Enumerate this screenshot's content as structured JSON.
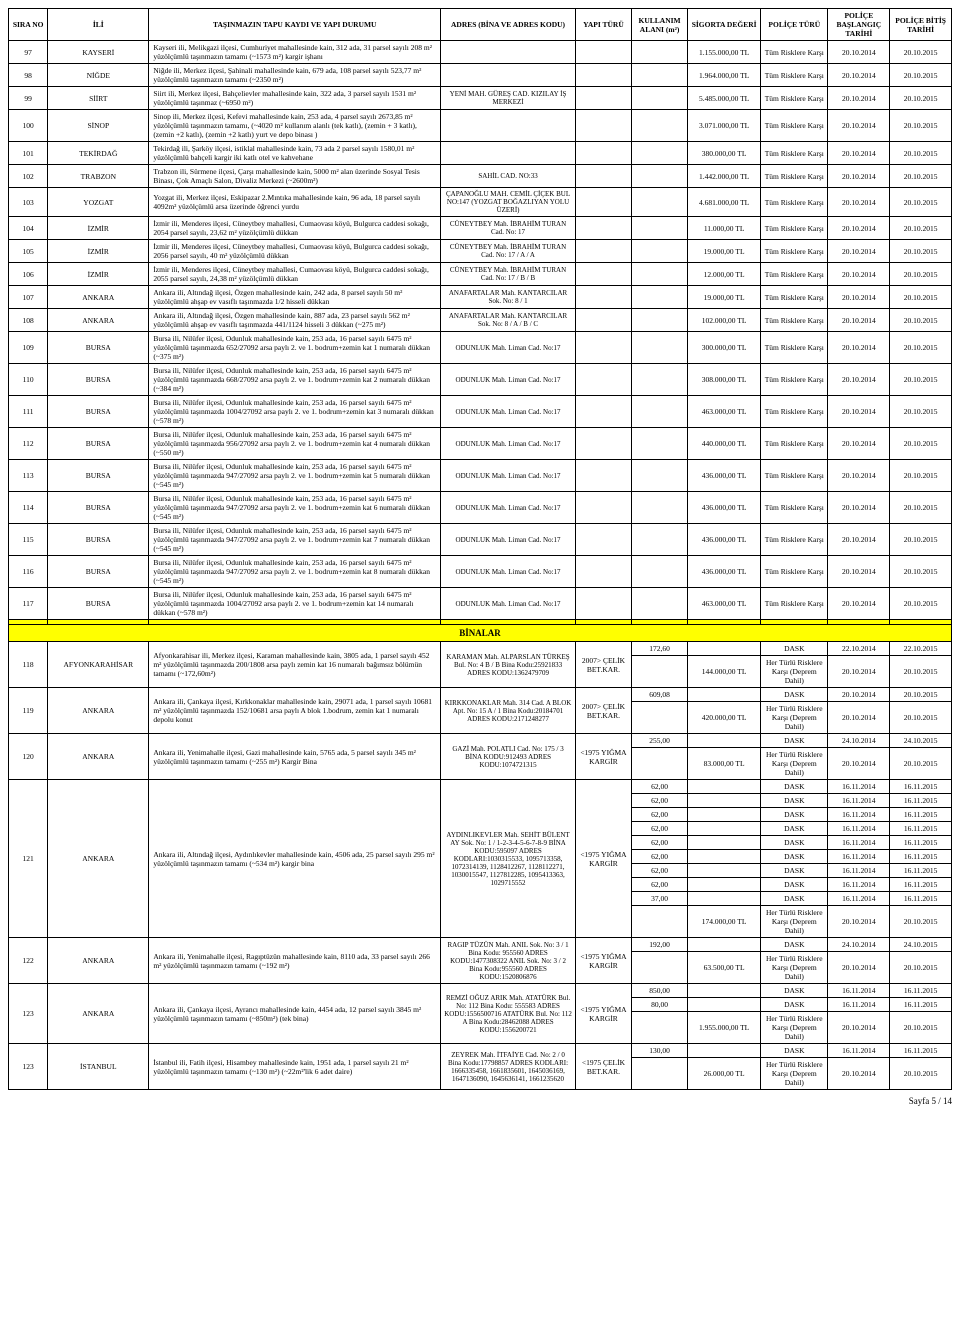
{
  "headers": {
    "sira": "SIRA NO",
    "il": "İLİ",
    "tapu": "TAŞINMAZIN TAPU KAYDI VE YAPI DURUMU",
    "adres": "ADRES\n(BİNA VE ADRES KODU)",
    "yapi": "YAPI TÜRÜ",
    "alan": "KULLANIM ALANI (m²)",
    "sigorta": "SİGORTA DEĞERİ",
    "police": "POLİÇE TÜRÜ",
    "baslangic": "POLİÇE BAŞLANGIÇ TARİHİ",
    "bitis": "POLİÇE BİTİŞ TARİHİ"
  },
  "police_types": {
    "tum": "Tüm Risklere Karşı",
    "dask": "DASK",
    "her": "Her Türlü Risklere Karşı (Deprem Dahil)"
  },
  "section_title": "BİNALAR",
  "footer": "Sayfa 5 / 14",
  "rows_top": [
    {
      "sira": "97",
      "il": "KAYSERİ",
      "tapu": "Kayseri ili, Melikgazi ilçesi, Cumhuriyet mahallesinde kain, 312 ada, 31 parsel sayılı 208 m² yüzölçümlü taşınmazın tamamı (~1573 m²) kargir işhanı",
      "adres": "",
      "sigorta": "1.155.000,00 TL",
      "baslangic": "20.10.2014",
      "bitis": "20.10.2015"
    },
    {
      "sira": "98",
      "il": "NİĞDE",
      "tapu": "Niğde ili, Merkez ilçesi, Şahinali mahallesinde kain, 679 ada, 108 parsel sayılı 523,77 m² yüzölçümlü taşınmazın tamamı (~2350 m²)",
      "adres": "",
      "sigorta": "1.964.000,00 TL",
      "baslangic": "20.10.2014",
      "bitis": "20.10.2015"
    },
    {
      "sira": "99",
      "il": "SİİRT",
      "tapu": "Siirt ili, Merkez ilçesi, Bahçelievler mahallesinde kain, 322 ada, 3 parsel sayılı 1531 m² yüzölçümlü taşınmaz (~6950 m²)",
      "adres": "YENİ MAH. GÜREŞ CAD. KIZILAY İŞ MERKEZİ",
      "sigorta": "5.485.000,00 TL",
      "baslangic": "20.10.2014",
      "bitis": "20.10.2015"
    },
    {
      "sira": "100",
      "il": "SİNOP",
      "tapu": "Sinop ili, Merkez ilçesi, Kefevi mahallesinde kain, 253 ada, 4 parsel sayılı 2673,85 m² yüzölçümlü taşınmazın tamamı, (~4020 m² kullanım alanlı (tek katlı), (zemin + 3 katlı), (zemin +2 katlı), (zemin +2 katlı) yurt ve depo binası )",
      "adres": "",
      "sigorta": "3.071.000,00 TL",
      "baslangic": "20.10.2014",
      "bitis": "20.10.2015"
    },
    {
      "sira": "101",
      "il": "TEKİRDAĞ",
      "tapu": "Tekirdağ ili, Şarköy ilçesi, istiklal mahallesinde kain, 73 ada 2 parsel sayılı 1580,01 m² yüzölçümlü bahçeli kargir iki katlı otel ve kahvehane",
      "adres": "",
      "sigorta": "380.000,00 TL",
      "baslangic": "20.10.2014",
      "bitis": "20.10.2015"
    },
    {
      "sira": "102",
      "il": "TRABZON",
      "tapu": "Trabzon ili, Sürmene ilçesi, Çarşı mahallesinde kain, 5000 m² alan üzerinde Sosyal Tesis Binası, Çok Amaçlı Salon, Divaliz Merkezi (~2600m²)",
      "adres": "SAHİL CAD. NO:33",
      "sigorta": "1.442.000,00 TL",
      "baslangic": "20.10.2014",
      "bitis": "20.10.2015"
    },
    {
      "sira": "103",
      "il": "YOZGAT",
      "tapu": "Yozgat ili, Merkez ilçesi, Eskipazar 2.Mıntıka mahallesinde kain, 96 ada, 18 parsel sayılı 4092m² yüzölçümlü arsa üzerinde öğrenci yurdu",
      "adres": "ÇAPANOĞLU MAH. CEMİL ÇİÇEK BUL NO:147 (YOZGAT BOĞAZLIYAN YOLU ÜZERİ)",
      "sigorta": "4.681.000,00 TL",
      "baslangic": "20.10.2014",
      "bitis": "20.10.2015"
    },
    {
      "sira": "104",
      "il": "İZMİR",
      "tapu": "İzmir ili, Menderes ilçesi, Cüneytbey mahallesi, Cumaovası köyü, Bulgurca caddesi sokağı, 2054 parsel sayılı, 23,62 m² yüzölçümlü dükkan",
      "adres": "CÜNEYTBEY Mah. İBRAHİM TURAN Cad. No: 17",
      "sigorta": "11.000,00 TL",
      "baslangic": "20.10.2014",
      "bitis": "20.10.2015"
    },
    {
      "sira": "105",
      "il": "İZMİR",
      "tapu": "İzmir ili, Menderes ilçesi, Cüneytbey mahallesi, Cumaovası köyü, Bulgurca caddesi sokağı, 2056 parsel sayılı, 40 m² yüzölçümlü dükkan",
      "adres": "CÜNEYTBEY Mah. İBRAHİM TURAN Cad. No: 17 / A / A",
      "sigorta": "19.000,00 TL",
      "baslangic": "20.10.2014",
      "bitis": "20.10.2015"
    },
    {
      "sira": "106",
      "il": "İZMİR",
      "tapu": "İzmir ili, Menderes ilçesi, Cüneytbey mahallesi, Cumaovası köyü, Bulgurca caddesi sokağı, 2055 parsel sayılı, 24,38 m² yüzölçümlü dükkan",
      "adres": "CÜNEYTBEY Mah. İBRAHİM TURAN Cad. No: 17 / B / B",
      "sigorta": "12.000,00 TL",
      "baslangic": "20.10.2014",
      "bitis": "20.10.2015"
    },
    {
      "sira": "107",
      "il": "ANKARA",
      "tapu": "Ankara ili, Altındağ ilçesi, Özgen mahallesinde kain, 242 ada, 8 parsel sayılı 50 m² yüzölçümlü ahşap ev vasıflı taşınmazda 1/2 hisseli dükkan",
      "adres": "ANAFARTALAR Mah. KANTARCILAR Sok. No: 8 / 1",
      "sigorta": "19.000,00 TL",
      "baslangic": "20.10.2014",
      "bitis": "20.10.2015"
    },
    {
      "sira": "108",
      "il": "ANKARA",
      "tapu": "Ankara ili, Altındağ ilçesi, Özgen mahallesinde kain, 887 ada, 23 parsel sayılı 562 m² yüzölçümlü ahşap ev vasıflı taşınmazda 441/1124 hisseli 3 dükkan (~275 m²)",
      "adres": "ANAFARTALAR Mah. KANTARCILAR Sok. No: 8 / A / B / C",
      "sigorta": "102.000,00 TL",
      "baslangic": "20.10.2014",
      "bitis": "20.10.2015"
    },
    {
      "sira": "109",
      "il": "BURSA",
      "tapu": "Bursa ili, Nilüfer ilçesi, Odunluk mahallesinde kain, 253 ada, 16 parsel sayılı 6475 m² yüzölçümlü taşınmazda 652/27092 arsa paylı 2. ve 1. bodrum+zemin kat 1 numaralı dükkan (~375 m²)",
      "adres": "ODUNLUK Mah. Liman Cad. No:17",
      "sigorta": "300.000,00 TL",
      "baslangic": "20.10.2014",
      "bitis": "20.10.2015"
    },
    {
      "sira": "110",
      "il": "BURSA",
      "tapu": "Bursa ili, Nilüfer ilçesi, Odunluk mahallesinde kain, 253 ada, 16 parsel sayılı 6475 m² yüzölçümlü taşınmazda 668/27092 arsa paylı 2. ve 1. bodrum+zemin kat 2 numaralı dükkan (~384 m²)",
      "adres": "ODUNLUK Mah. Liman Cad. No:17",
      "sigorta": "308.000,00 TL",
      "baslangic": "20.10.2014",
      "bitis": "20.10.2015"
    },
    {
      "sira": "111",
      "il": "BURSA",
      "tapu": "Bursa ili, Nilüfer ilçesi, Odunluk mahallesinde kain, 253 ada, 16 parsel sayılı 6475 m² yüzölçümlü taşınmazda 1004/27092 arsa paylı 2. ve 1. bodrum+zemin kat 3 numaralı dükkan (~578 m²)",
      "adres": "ODUNLUK Mah. Liman Cad. No:17",
      "sigorta": "463.000,00 TL",
      "baslangic": "20.10.2014",
      "bitis": "20.10.2015"
    },
    {
      "sira": "112",
      "il": "BURSA",
      "tapu": "Bursa ili, Nilüfer ilçesi, Odunluk mahallesinde kain, 253 ada, 16 parsel sayılı 6475 m² yüzölçümlü taşınmazda 956/27092 arsa paylı 2. ve 1. bodrum+zemin kat 4 numaralı dükkan (~550 m²)",
      "adres": "ODUNLUK Mah. Liman Cad. No:17",
      "sigorta": "440.000,00 TL",
      "baslangic": "20.10.2014",
      "bitis": "20.10.2015"
    },
    {
      "sira": "113",
      "il": "BURSA",
      "tapu": "Bursa ili, Nilüfer ilçesi, Odunluk mahallesinde kain, 253 ada, 16 parsel sayılı 6475 m² yüzölçümlü taşınmazda 947/27092 arsa paylı 2. ve 1. bodrum+zemin kat 5 numaralı dükkan (~545 m²)",
      "adres": "ODUNLUK Mah. Liman Cad. No:17",
      "sigorta": "436.000,00 TL",
      "baslangic": "20.10.2014",
      "bitis": "20.10.2015"
    },
    {
      "sira": "114",
      "il": "BURSA",
      "tapu": "Bursa ili, Nilüfer ilçesi, Odunluk mahallesinde kain, 253 ada, 16 parsel sayılı 6475 m² yüzölçümlü taşınmazda 947/27092 arsa paylı 2. ve 1. bodrum+zemin kat 6 numaralı dükkan (~545 m²)",
      "adres": "ODUNLUK Mah. Liman Cad. No:17",
      "sigorta": "436.000,00 TL",
      "baslangic": "20.10.2014",
      "bitis": "20.10.2015"
    },
    {
      "sira": "115",
      "il": "BURSA",
      "tapu": "Bursa ili, Nilüfer ilçesi, Odunluk mahallesinde kain, 253 ada, 16 parsel sayılı 6475 m² yüzölçümlü taşınmazda 947/27092 arsa paylı 2. ve 1. bodrum+zemin kat 7 numaralı dükkan (~545 m²)",
      "adres": "ODUNLUK Mah. Liman Cad. No:17",
      "sigorta": "436.000,00 TL",
      "baslangic": "20.10.2014",
      "bitis": "20.10.2015"
    },
    {
      "sira": "116",
      "il": "BURSA",
      "tapu": "Bursa ili, Nilüfer ilçesi, Odunluk mahallesinde kain, 253 ada, 16 parsel sayılı 6475 m² yüzölçümlü taşınmazda 947/27092 arsa paylı 2. ve 1. bodrum+zemin kat 8 numaralı dükkan (~545 m²)",
      "adres": "ODUNLUK Mah. Liman Cad. No:17",
      "sigorta": "436.000,00 TL",
      "baslangic": "20.10.2014",
      "bitis": "20.10.2015"
    },
    {
      "sira": "117",
      "il": "BURSA",
      "tapu": "Bursa ili, Nilüfer ilçesi, Odunluk mahallesinde kain, 253 ada, 16 parsel sayılı 6475 m² yüzölçümlü taşınmazda 1004/27092 arsa paylı 2. ve 1. bodrum+zemin kat 14 numaralı dükkan (~578 m²)",
      "adres": "ODUNLUK Mah. Liman Cad. No:17",
      "sigorta": "463.000,00 TL",
      "baslangic": "20.10.2014",
      "bitis": "20.10.2015"
    }
  ],
  "row118": {
    "sira": "118",
    "il": "AFYONKARAHİSAR",
    "tapu": "Afyonkarahisar ili, Merkez ilçesi, Karaman mahallesinde kain, 3805 ada, 1 parsel sayılı 452 m² yüzölçümlü taşınmazda 200/1808 arsa paylı zemin kat 16 numaralı bağımsız bölümün tamamı (~172,60m²)",
    "adres": "KARAMAN Mah. ALPARSLAN TÜRKEŞ Bul. No: 4 B / B Bina Kodu:25921833 ADRES KODU:1362479709",
    "yapi": "2007> ÇELİK BET.KAR.",
    "alan": "172,60",
    "sigorta": "144.000,00 TL",
    "dask_b": "22.10.2014",
    "dask_e": "22.10.2015",
    "her_b": "20.10.2014",
    "her_e": "20.10.2015"
  },
  "row119": {
    "sira": "119",
    "il": "ANKARA",
    "tapu": "Ankara ili, Çankaya ilçesi, Kırkkonaklar mahallesinde kain, 29071 ada, 1 parsel sayılı 10681 m² yüzölçümlü taşınmazda 152/10681 arsa paylı A blok 1.bodrum, zemin kat 1 numaralı depolu konut",
    "adres": "KIRKKONAKLAR Mah. 314 Cad. A BLOK Apt. No: 15 A / 1 Bina Kodu:20184701 ADRES KODU:2171248277",
    "yapi": "2007> ÇELİK BET.KAR.",
    "alan": "609,08",
    "sigorta": "420.000,00 TL",
    "dask_b": "20.10.2014",
    "dask_e": "20.10.2015",
    "her_b": "20.10.2014",
    "her_e": "20.10.2015"
  },
  "row120": {
    "sira": "120",
    "il": "ANKARA",
    "tapu": "Ankara ili, Yenimahalle ilçesi, Gazi mahallesinde kain, 5765 ada, 5 parsel sayılı 345 m² yüzölçümlü taşınmazın tamamı (~255 m²) Kargir Bina",
    "adres": "GAZİ Mah. POLATLI Cad. No: 175 / 3 BİNA KODU:912493 ADRES KODU:1074721315",
    "yapi": "<1975 YIĞMA KARGİR",
    "alan": "255,00",
    "sigorta": "83.000,00 TL",
    "dask_b": "24.10.2014",
    "dask_e": "24.10.2015",
    "her_b": "20.10.2014",
    "her_e": "20.10.2015"
  },
  "row121": {
    "sira": "121",
    "il": "ANKARA",
    "tapu": "Ankara ili, Altındağ ilçesi, Aydınlıkevler mahallesinde kain, 4506 ada, 25 parsel sayılı 295 m² yüzölçümlü taşınmazın tamamı (~534 m²) kargir bina",
    "adres": "AYDINLIKEVLER Mah. SEHİT BÜLENT AY Sok. No: 1 / 1-2-3-4-5-6-7-8-9 BİNA KODU:595097 ADRES KODLARI:1030315533, 1095713358, 1072314139, 1128412267, 1128112271, 1030015547, 1127812285, 1095413363, 1029715552",
    "yapi": "<1975 YIĞMA KARGİR",
    "sigorta": "174.000,00 TL",
    "dask_lines": [
      {
        "a": "62,00",
        "b": "16.11.2014",
        "e": "16.11.2015"
      },
      {
        "a": "62,00",
        "b": "16.11.2014",
        "e": "16.11.2015"
      },
      {
        "a": "62,00",
        "b": "16.11.2014",
        "e": "16.11.2015"
      },
      {
        "a": "62,00",
        "b": "16.11.2014",
        "e": "16.11.2015"
      },
      {
        "a": "62,00",
        "b": "16.11.2014",
        "e": "16.11.2015"
      },
      {
        "a": "62,00",
        "b": "16.11.2014",
        "e": "16.11.2015"
      },
      {
        "a": "62,00",
        "b": "16.11.2014",
        "e": "16.11.2015"
      },
      {
        "a": "62,00",
        "b": "16.11.2014",
        "e": "16.11.2015"
      },
      {
        "a": "37,00",
        "b": "16.11.2014",
        "e": "16.11.2015"
      }
    ],
    "her_b": "20.10.2014",
    "her_e": "20.10.2015"
  },
  "row122": {
    "sira": "122",
    "il": "ANKARA",
    "tapu": "Ankara ili, Yenimahalle ilçesi, Ragıptüzün mahallesinde kain, 8110 ada, 33 parsel sayılı 266 m² yüzölçümlü taşınmazın tamamı (~192 m²)",
    "adres": "RAGIP TÜZÜN Mah. ANIL Sok. No: 3 / 1 Bina Kodu: 955560 ADRES KODU:1477308322 ANIL Sok. No: 3 / 2 Bina Kodu:955560 ADRES KODU:1520806876",
    "yapi": "<1975 YIĞMA KARGİR",
    "alan": "192,00",
    "sigorta": "63.500,00 TL",
    "dask_b": "24.10.2014",
    "dask_e": "24.10.2015",
    "her_b": "20.10.2014",
    "her_e": "20.10.2015"
  },
  "row123a": {
    "sira": "123",
    "il": "ANKARA",
    "tapu": "Ankara ili, Çankaya ilçesi, Ayrancı mahallesinde kain, 4454 ada, 12 parsel sayılı 3845 m² yüzölçümlü taşınmazın tamamı (~850m²) (tek bina)",
    "adres": "REMZİ OĞUZ ARIK Mah. ATATÜRK Bul. No: 112 Bina Kodu: 555583 ADRES KODU:1556500716 ATATÜRK Bul. No: 112 A Bina Kodu:28462088 ADRES KODU:1556200721",
    "yapi": "<1975 YIĞMA KARGİR",
    "sigorta": "1.955.000,00 TL",
    "dask_lines": [
      {
        "a": "850,00",
        "b": "16.11.2014",
        "e": "16.11.2015"
      },
      {
        "a": "80,00",
        "b": "16.11.2014",
        "e": "16.11.2015"
      }
    ],
    "her_b": "20.10.2014",
    "her_e": "20.10.2015"
  },
  "row123b": {
    "sira": "123",
    "il": "İSTANBUL",
    "tapu": "İstanbul ili, Fatih ilçesi, Hisambey mahallesinde kain, 1951 ada, 1 parsel sayılı 21 m² yüzölçümlü taşınmazın tamamı (~130 m²) (~22m²'lik 6 adet daire)",
    "adres": "ZEYREK Mah. İTFAİYE Cad. No: 2 / 0 Bina Kodu:17798857 ADRES KODLARI: 1666335458, 1661835601, 1645036169, 1647136090, 1645636141, 1661235620",
    "yapi": "<1975 ÇELİK BET.KAR.",
    "alan": "130,00",
    "sigorta": "26.000,00 TL",
    "dask_b": "16.11.2014",
    "dask_e": "16.11.2015",
    "her_b": "20.10.2014",
    "her_e": "20.10.2015"
  }
}
